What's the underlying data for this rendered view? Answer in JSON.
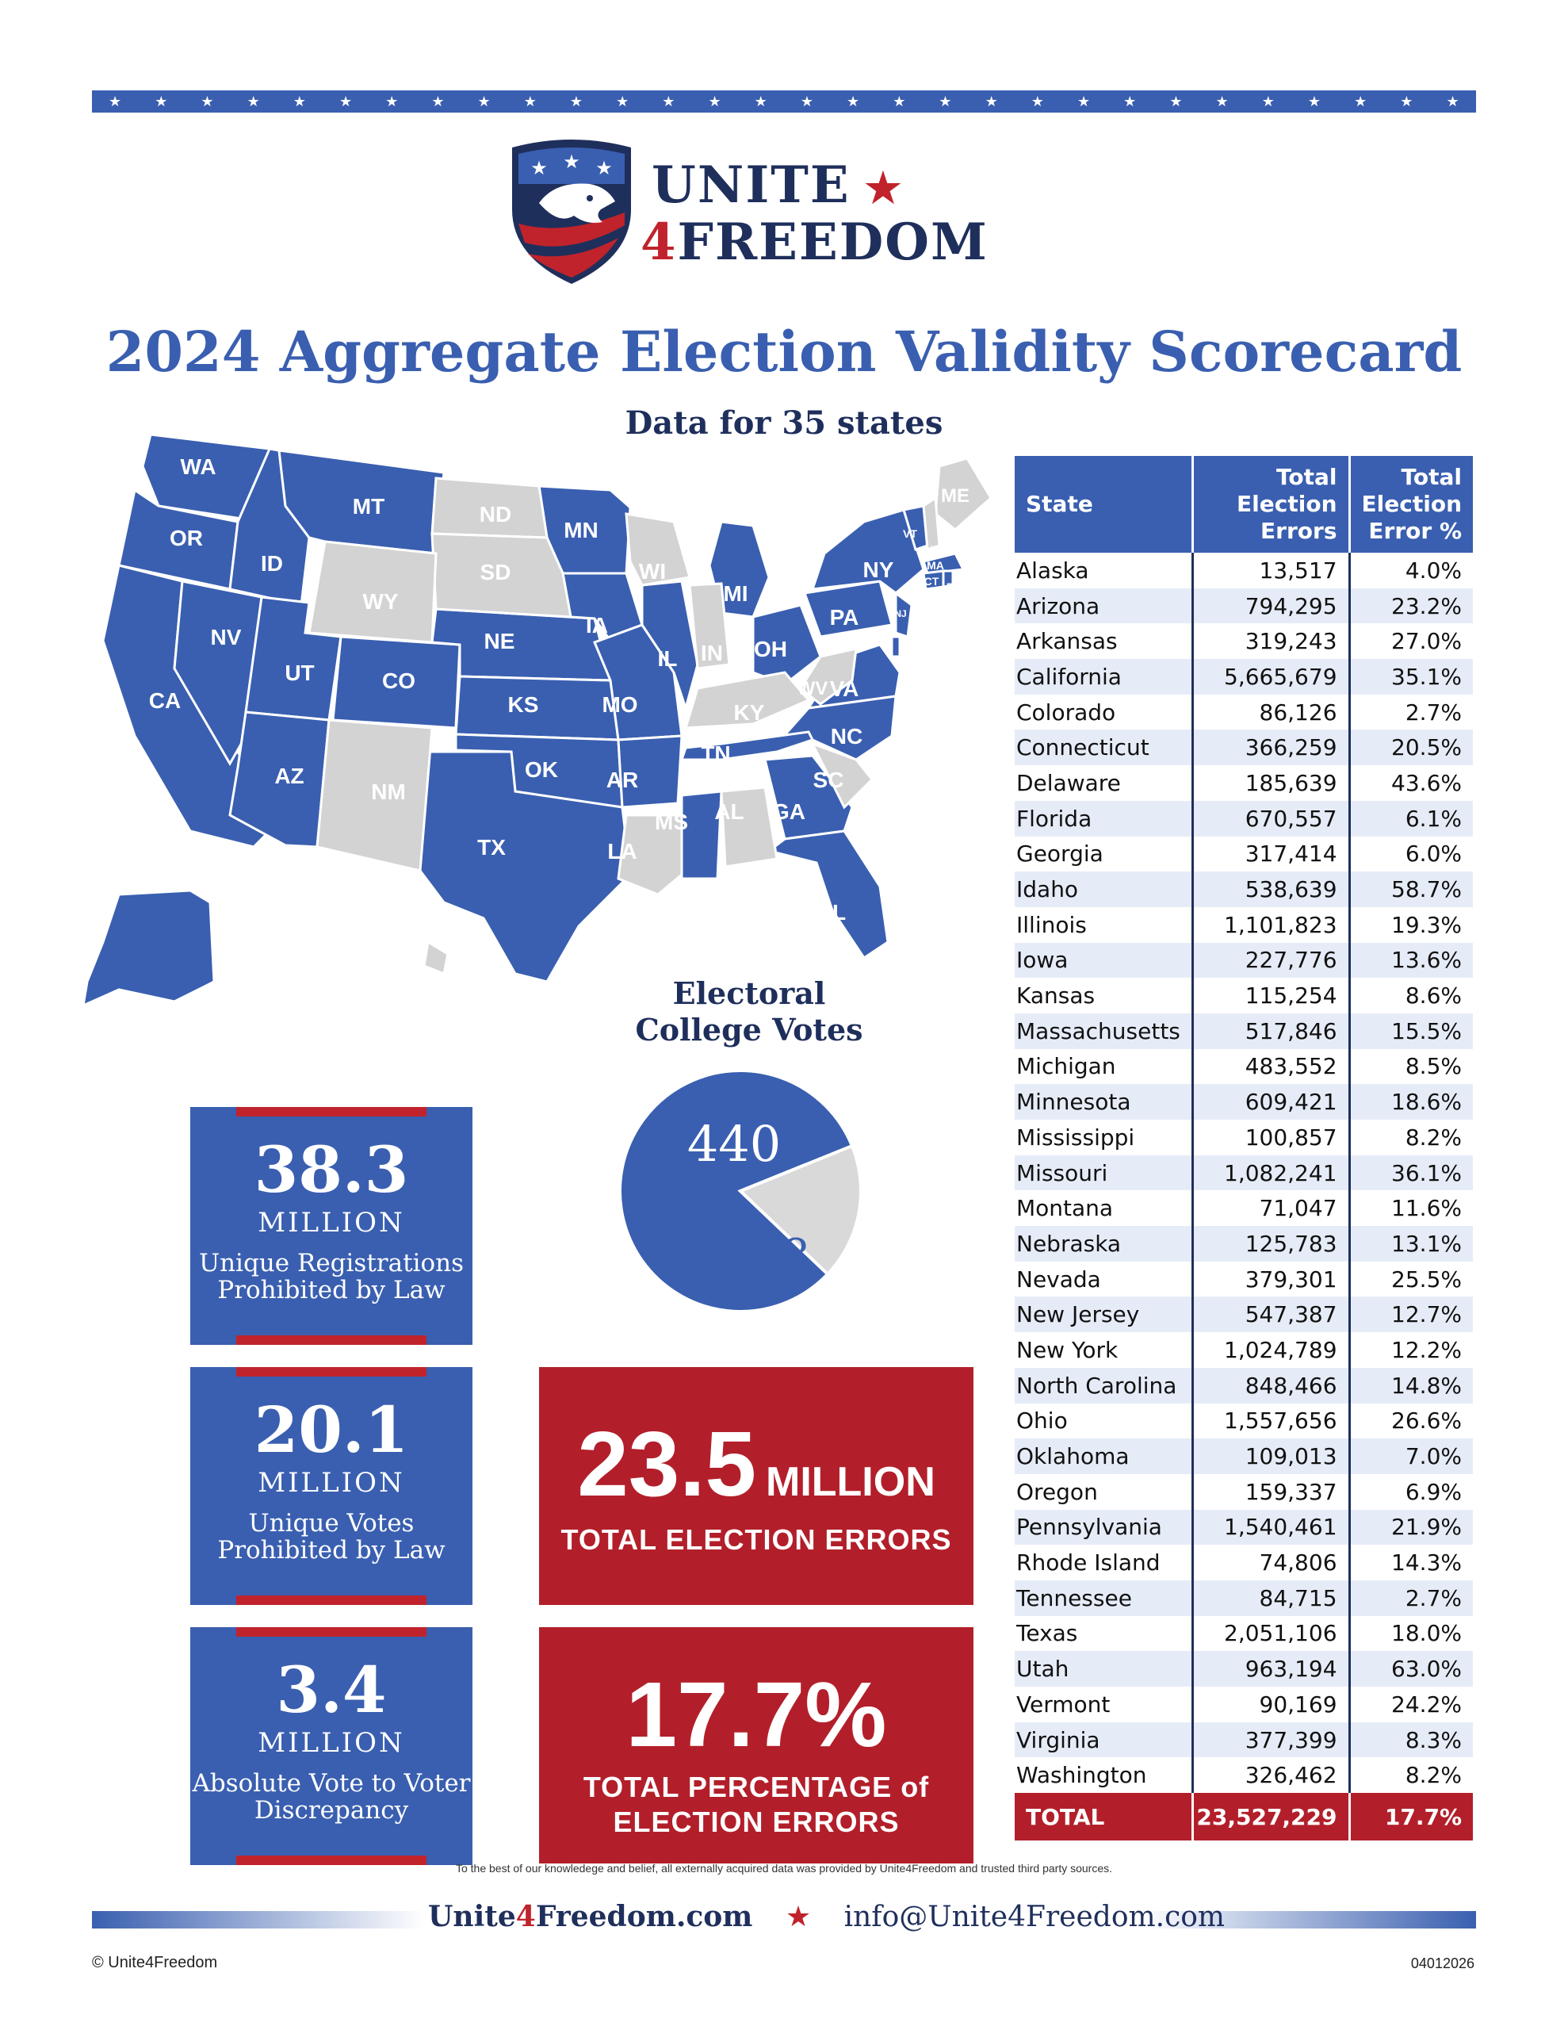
{
  "brand": {
    "line1": "UNITE",
    "line2_digit": "4",
    "line2_word": "FREEDOM"
  },
  "title": "2024 Aggregate Election Validity Scorecard",
  "subtitle": "Data for 35 states",
  "colors": {
    "blue": "#3a5fb0",
    "navy": "#1f2f5c",
    "red": "#b21f2a",
    "gray": "#d3d3d3"
  },
  "map": {
    "states_with_data": [
      "WA",
      "OR",
      "CA",
      "NV",
      "ID",
      "MT",
      "UT",
      "AZ",
      "CO",
      "NE",
      "KS",
      "OK",
      "TX",
      "MN",
      "IA",
      "MO",
      "AR",
      "MS",
      "IL",
      "MI",
      "OH",
      "PA",
      "NY",
      "VT",
      "MA",
      "CT",
      "RI",
      "NJ",
      "DEL",
      "VA",
      "NC",
      "TN",
      "GA",
      "FL",
      "AK"
    ],
    "states_without_data": [
      "ND",
      "SD",
      "WY",
      "NM",
      "WI",
      "IN",
      "KY",
      "WV",
      "SC",
      "AL",
      "LA",
      "ME",
      "NH",
      "HI"
    ]
  },
  "electoral": {
    "title_line1": "Electoral",
    "title_line2": "College Votes",
    "with_data": "440",
    "without_data": "98",
    "values": [
      440,
      98
    ]
  },
  "stats": [
    {
      "value": "38.3",
      "unit": "MILLION",
      "line1": "Unique Registrations",
      "line2": "Prohibited by Law"
    },
    {
      "value": "20.1",
      "unit": "MILLION",
      "line1": "Unique Votes",
      "line2": "Prohibited by Law"
    },
    {
      "value": "3.4",
      "unit": "MILLION",
      "line1": "Absolute Vote to Voter",
      "line2": "Discrepancy"
    }
  ],
  "totals": {
    "errors_value": "23.5",
    "errors_unit": "MILLION",
    "errors_label": "TOTAL ELECTION ERRORS",
    "pct_value": "17.7%",
    "pct_label_line1": "TOTAL PERCENTAGE of",
    "pct_label_line2": "ELECTION ERRORS"
  },
  "table": {
    "headers": {
      "state": "State",
      "errors_l1": "Total",
      "errors_l2": "Election",
      "errors_l3": "Errors",
      "pct_l1": "Total",
      "pct_l2": "Election",
      "pct_l3": "Error %"
    },
    "rows": [
      [
        "Alaska",
        "13,517",
        "4.0%"
      ],
      [
        "Arizona",
        "794,295",
        "23.2%"
      ],
      [
        "Arkansas",
        "319,243",
        "27.0%"
      ],
      [
        "California",
        "5,665,679",
        "35.1%"
      ],
      [
        "Colorado",
        "86,126",
        "2.7%"
      ],
      [
        "Connecticut",
        "366,259",
        "20.5%"
      ],
      [
        "Delaware",
        "185,639",
        "43.6%"
      ],
      [
        "Florida",
        "670,557",
        "6.1%"
      ],
      [
        "Georgia",
        "317,414",
        "6.0%"
      ],
      [
        "Idaho",
        "538,639",
        "58.7%"
      ],
      [
        "Illinois",
        "1,101,823",
        "19.3%"
      ],
      [
        "Iowa",
        "227,776",
        "13.6%"
      ],
      [
        "Kansas",
        "115,254",
        "8.6%"
      ],
      [
        "Massachusetts",
        "517,846",
        "15.5%"
      ],
      [
        "Michigan",
        "483,552",
        "8.5%"
      ],
      [
        "Minnesota",
        "609,421",
        "18.6%"
      ],
      [
        "Mississippi",
        "100,857",
        "8.2%"
      ],
      [
        "Missouri",
        "1,082,241",
        "36.1%"
      ],
      [
        "Montana",
        "71,047",
        "11.6%"
      ],
      [
        "Nebraska",
        "125,783",
        "13.1%"
      ],
      [
        "Nevada",
        "379,301",
        "25.5%"
      ],
      [
        "New Jersey",
        "547,387",
        "12.7%"
      ],
      [
        "New York",
        "1,024,789",
        "12.2%"
      ],
      [
        "North Carolina",
        "848,466",
        "14.8%"
      ],
      [
        "Ohio",
        "1,557,656",
        "26.6%"
      ],
      [
        "Oklahoma",
        "109,013",
        "7.0%"
      ],
      [
        "Oregon",
        "159,337",
        "6.9%"
      ],
      [
        "Pennsylvania",
        "1,540,461",
        "21.9%"
      ],
      [
        "Rhode Island",
        "74,806",
        "14.3%"
      ],
      [
        "Tennessee",
        "84,715",
        "2.7%"
      ],
      [
        "Texas",
        "2,051,106",
        "18.0%"
      ],
      [
        "Utah",
        "963,194",
        "63.0%"
      ],
      [
        "Vermont",
        "90,169",
        "24.2%"
      ],
      [
        "Virginia",
        "377,399",
        "8.3%"
      ],
      [
        "Washington",
        "326,462",
        "8.2%"
      ]
    ],
    "total": [
      "TOTAL",
      "23,527,229",
      "17.7%"
    ]
  },
  "footer": {
    "disclaimer": "To the best of our knowledege and belief, all externally acquired data was provided by Unite4Freedom and trusted third party sources.",
    "site_a": "Unite",
    "site_b": "4",
    "site_c": "Freedom.com",
    "email": "info@Unite4Freedom.com",
    "copyright": "© Unite4Freedom",
    "doc_number": "04012026"
  }
}
